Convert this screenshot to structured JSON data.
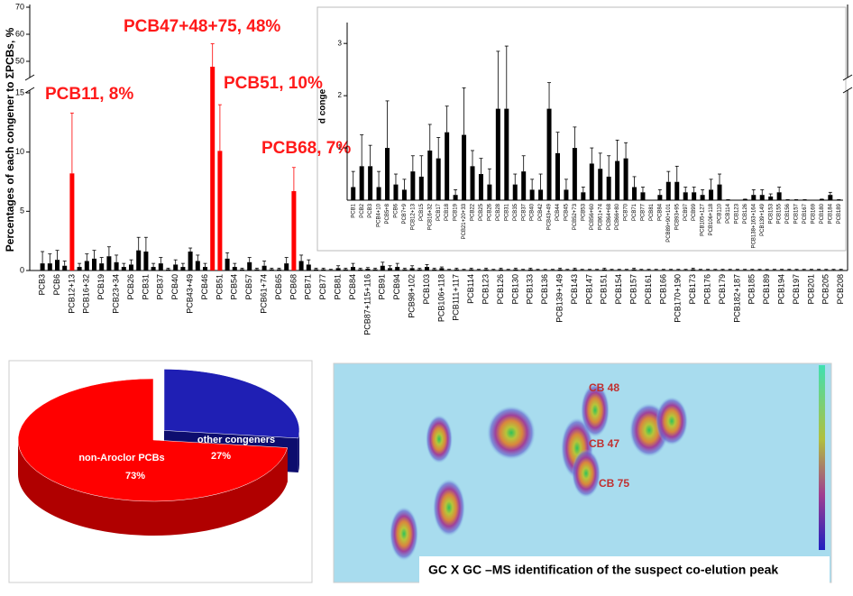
{
  "chart_data": [
    {
      "type": "bar",
      "ylabel": "Percentages of each congener to ΣPCBs, %",
      "annotations": [
        "PCB47+48+75, 48%",
        "PCB11, 8%",
        "PCB51, 10%",
        "PCB68, 7%"
      ],
      "ylim": [
        0,
        70
      ],
      "ybreak": [
        15,
        45
      ],
      "yticks": [
        0,
        5,
        10,
        15,
        50,
        60,
        70
      ],
      "categories": [
        "PCB3",
        null,
        "PCB6",
        null,
        "PCB12+13",
        null,
        "PCB16+32",
        null,
        "PCB19",
        null,
        "PCB23+34",
        null,
        "PCB26",
        null,
        "PCB31",
        null,
        "PCB37",
        null,
        "PCB40",
        null,
        "PCB43+49",
        null,
        "PCB46",
        null,
        "PCB51",
        null,
        "PCB54",
        null,
        "PCB57",
        null,
        "PCB61+74",
        null,
        "PCB65",
        null,
        "PCB68",
        null,
        "PCB71",
        null,
        "PCB77",
        null,
        "PCB81",
        null,
        "PCB84",
        null,
        "PCB87+115+116",
        null,
        "PCB91",
        null,
        "PCB94",
        null,
        "PCB98+102",
        null,
        "PCB103",
        null,
        "PCB106+118",
        null,
        "PCB111+117",
        null,
        "PCB114",
        null,
        "PCB123",
        null,
        "PCB126",
        null,
        "PCB130",
        null,
        "PCB133",
        null,
        "PCB136",
        null,
        "PCB139+149",
        null,
        "PCB143",
        null,
        "PCB147",
        null,
        "PCB151",
        null,
        "PCB154",
        null,
        "PCB157",
        null,
        "PCB161",
        null,
        "PCB166",
        null,
        "PCB170+190",
        null,
        "PCB173",
        null,
        "PCB176",
        null,
        "PCB179",
        null,
        "PCB182+187",
        null,
        "PCB185",
        null,
        "PCB189",
        null,
        "PCB194",
        null,
        "PCB197",
        null,
        "PCB201",
        null,
        "PCB205",
        null,
        "PCB208"
      ],
      "values": [
        0.6,
        0.6,
        0.9,
        0.4,
        8.2,
        0.3,
        0.8,
        1.0,
        0.6,
        1.2,
        0.7,
        0.3,
        0.5,
        1.7,
        1.6,
        0.3,
        0.6,
        0.1,
        0.5,
        0.3,
        1.6,
        0.8,
        0.3,
        48,
        10.1,
        1.0,
        0.3,
        0.1,
        0.7,
        0.1,
        0.4,
        0.1,
        0.1,
        0.6,
        6.7,
        0.8,
        0.5,
        0.1,
        0.1,
        0.05,
        0.2,
        0.1,
        0.3,
        0.1,
        0.15,
        0.1,
        0.4,
        0.2,
        0.3,
        0.1,
        0.2,
        0.1,
        0.3,
        0.1,
        0.2,
        0.05,
        0.1,
        0.05,
        0.1,
        0.05,
        0.1,
        0.05,
        0.1,
        0.05,
        0.1,
        0.05,
        0.1,
        0.05,
        0.05,
        0.05,
        0.1,
        0.05,
        0.1,
        0.05,
        0.05,
        0.05,
        0.1,
        0.05,
        0.05,
        0.05,
        0.1,
        0.05,
        0.05,
        0.05,
        0.05,
        0.05,
        0.05,
        0.05,
        0.1,
        0.05,
        0.05,
        0.05,
        0.05,
        0.05,
        0.05,
        0.05,
        0.05,
        0.05,
        0.05,
        0.05,
        0.05,
        0.05,
        0.05,
        0.05,
        0.05,
        0.05,
        0.05,
        0.05,
        0.05
      ],
      "errors": [
        1.0,
        0.8,
        0.8,
        0.4,
        5.1,
        0.3,
        0.6,
        0.7,
        0.5,
        0.8,
        0.6,
        0.3,
        0.4,
        1.1,
        1.2,
        0.3,
        0.5,
        0.1,
        0.4,
        0.3,
        0.3,
        0.5,
        0.3,
        8.5,
        3.9,
        0.5,
        0.3,
        0.1,
        0.4,
        0.1,
        0.4,
        0.1,
        0.1,
        0.5,
        2.0,
        0.5,
        0.4,
        0.1,
        0.1,
        0.05,
        0.2,
        0.1,
        0.3,
        0.1,
        0.1,
        0.1,
        0.3,
        0.2,
        0.3,
        0.1,
        0.2,
        0.1,
        0.2,
        0.1,
        0.1,
        0.05,
        0.1,
        0.05,
        0.1,
        0.05,
        0.1,
        0.05,
        0.1,
        0.05,
        0.1,
        0.05,
        0.1,
        0.05,
        0.05,
        0.05,
        0.1,
        0.05,
        0.1,
        0.05,
        0.05,
        0.05,
        0.1,
        0.05,
        0.05,
        0.05,
        0.1,
        0.05,
        0.05,
        0.05,
        0.05,
        0.05,
        0.05,
        0.05,
        0.1,
        0.05,
        0.05,
        0.05,
        0.05,
        0.05,
        0.05,
        0.05,
        0.05,
        0.05,
        0.05,
        0.05,
        0.05,
        0.05,
        0.05,
        0.05,
        0.05,
        0.05,
        0.05,
        0.05,
        0.05
      ],
      "colors": [
        "#000000",
        "#000000",
        "#000000",
        "#000000",
        "#ff0000",
        "#000000",
        "#000000",
        "#000000",
        "#000000",
        "#000000",
        "#000000",
        "#000000",
        "#000000",
        "#000000",
        "#000000",
        "#000000",
        "#000000",
        "#000000",
        "#000000",
        "#000000",
        "#000000",
        "#000000",
        "#000000",
        "#ff0000",
        "#ff0000",
        "#000000",
        "#000000",
        "#000000",
        "#000000",
        "#000000",
        "#000000",
        "#000000",
        "#000000",
        "#000000",
        "#ff0000",
        "#000000",
        "#000000",
        "#000000",
        "#000000",
        "#000000",
        "#000000",
        "#000000",
        "#000000",
        "#000000",
        "#000000",
        "#000000",
        "#000000",
        "#000000",
        "#000000",
        "#000000",
        "#000000",
        "#000000",
        "#000000",
        "#000000",
        "#000000",
        "#000000",
        "#000000",
        "#000000",
        "#000000",
        "#000000",
        "#000000",
        "#000000",
        "#000000",
        "#000000",
        "#000000",
        "#000000",
        "#000000",
        "#000000",
        "#000000",
        "#000000",
        "#000000",
        "#000000",
        "#000000",
        "#000000",
        "#000000",
        "#000000",
        "#000000",
        "#000000",
        "#000000",
        "#000000",
        "#000000",
        "#000000",
        "#000000",
        "#000000",
        "#000000",
        "#000000",
        "#000000",
        "#000000",
        "#000000",
        "#000000",
        "#000000",
        "#000000",
        "#000000",
        "#000000",
        "#000000",
        "#000000",
        "#000000",
        "#000000",
        "#000000",
        "#000000",
        "#000000",
        "#000000",
        "#000000",
        "#000000",
        "#000000",
        "#000000",
        "#000000",
        "#000000",
        "#000000"
      ]
    },
    {
      "type": "bar",
      "ylabel": "d conge",
      "ylim": [
        0,
        3.4
      ],
      "yticks": [
        1,
        2,
        3
      ],
      "color": "#000000",
      "categories": [
        "PCB1",
        "PCB2",
        "PCB3",
        "PCB4+10",
        "PCB5+8",
        "PCB6",
        "PCB7+9",
        "PCB12+13",
        "PCB15",
        "PCB16+32",
        "PCB17",
        "PCB18",
        "PCB19",
        "PCB21+20+33",
        "PCB22",
        "PCB25",
        "PCB26",
        "PCB28",
        "PCB31",
        "PCB35",
        "PCB37",
        "PCB40",
        "PCB42",
        "PCB43+49",
        "PCB44",
        "PCB45",
        "PCB52+73",
        "PCB53",
        "PCB56+60",
        "PCB61+74",
        "PCB64+68",
        "PCB66+80",
        "PCB70",
        "PCB71",
        "PCB77",
        "PCB81",
        "PCB84",
        "PCB89+90+101",
        "PCB93+95",
        "PCB97",
        "PCB99",
        "PCB105+127",
        "PCB106+118",
        "PCB110",
        "PCB114",
        "PCB123",
        "PCB126",
        "PCB138+163+164",
        "PCB139+149",
        "PCB153",
        "PCB155",
        "PCB156",
        "PCB157",
        "PCB167",
        "PCB169",
        "PCB180",
        "PCB184",
        "PCB189"
      ],
      "values": [
        0.25,
        0.65,
        0.65,
        0.25,
        1.0,
        0.3,
        0.2,
        0.55,
        0.45,
        0.95,
        0.8,
        1.3,
        0.1,
        1.25,
        0.65,
        0.5,
        0.3,
        1.75,
        1.75,
        0.3,
        0.55,
        0.2,
        0.2,
        1.75,
        0.9,
        0.2,
        1.0,
        0.15,
        0.7,
        0.6,
        0.45,
        0.75,
        0.8,
        0.25,
        0.15,
        0,
        0.1,
        0.35,
        0.35,
        0.15,
        0.15,
        0.1,
        0.2,
        0.3,
        0.01,
        0,
        0.02,
        0.1,
        0.1,
        0.07,
        0.15,
        0.01,
        0.01,
        0.01,
        0,
        0.02,
        0.1,
        0.01
      ],
      "errors": [
        0.3,
        0.6,
        0.4,
        0.3,
        0.9,
        0.2,
        0.2,
        0.3,
        0.4,
        0.5,
        0.4,
        0.5,
        0.1,
        0.9,
        0.3,
        0.3,
        0.3,
        1.1,
        1.2,
        0.2,
        0.3,
        0.2,
        0.3,
        0.5,
        0.4,
        0.2,
        0.4,
        0.1,
        0.3,
        0.3,
        0.4,
        0.4,
        0.3,
        0.2,
        0.1,
        0,
        0.1,
        0.2,
        0.3,
        0.1,
        0.1,
        0.1,
        0.2,
        0.2,
        0,
        0,
        0,
        0.1,
        0.1,
        0.05,
        0.1,
        0,
        0,
        0,
        0,
        0,
        0.05,
        0
      ]
    },
    {
      "type": "pie",
      "categories": [
        "other congeners",
        "non-Aroclor PCBs"
      ],
      "values": [
        27,
        73
      ],
      "value_labels": [
        "27%",
        "73%"
      ],
      "colors": [
        "#1f1fb4",
        "#ff0000"
      ]
    }
  ],
  "gcxgc": {
    "peak_labels": [
      "CB 48",
      "CB 47",
      "CB 75"
    ],
    "caption": "GC X GC –MS identification of the suspect co-elution peak"
  }
}
